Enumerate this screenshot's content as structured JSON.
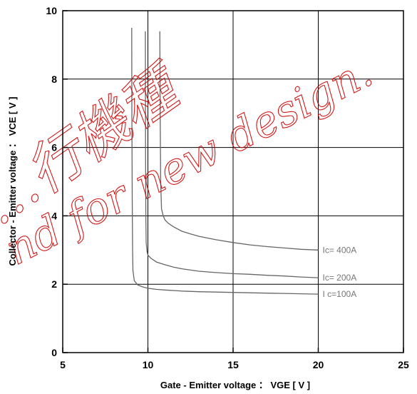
{
  "chart_data": {
    "type": "line",
    "xlabel": "Gate - Emitter voltage ： VGE  [ V ]",
    "ylabel": "Collector - Emitter voltage ： VCE  [ V ]",
    "xlim": [
      5,
      25
    ],
    "ylim": [
      0,
      10
    ],
    "xticks": [
      5,
      10,
      15,
      20,
      25
    ],
    "yticks": [
      0,
      2,
      4,
      6,
      8,
      10
    ],
    "grid": true,
    "series": [
      {
        "name": "Ic= 400A",
        "color": "#666666",
        "x": [
          10.7,
          10.72,
          10.75,
          10.8,
          10.9,
          11.0,
          11.2,
          11.5,
          12.0,
          12.5,
          13.0,
          14.0,
          15.0,
          16.0,
          17.0,
          18.0,
          19.0,
          20.0
        ],
        "y": [
          9.4,
          7.0,
          5.0,
          4.2,
          4.0,
          3.88,
          3.78,
          3.68,
          3.55,
          3.47,
          3.4,
          3.3,
          3.22,
          3.15,
          3.1,
          3.06,
          3.02,
          3.0
        ]
      },
      {
        "name": "Ic= 200A",
        "color": "#666666",
        "x": [
          9.85,
          9.86,
          9.88,
          9.9,
          9.95,
          10.0,
          10.2,
          10.5,
          11.0,
          11.5,
          12.0,
          13.0,
          14.0,
          15.0,
          16.0,
          17.0,
          18.0,
          19.0,
          20.0
        ],
        "y": [
          9.4,
          6.0,
          4.0,
          3.2,
          2.95,
          2.85,
          2.75,
          2.65,
          2.57,
          2.5,
          2.45,
          2.38,
          2.34,
          2.31,
          2.29,
          2.26,
          2.24,
          2.21,
          2.19
        ]
      },
      {
        "name": "I c=100A",
        "color": "#666666",
        "x": [
          9.05,
          9.06,
          9.08,
          9.1,
          9.12,
          9.2,
          9.4,
          9.7,
          10.0,
          10.5,
          11.0,
          12.0,
          13.0,
          14.0,
          15.0,
          16.0,
          17.0,
          18.0,
          19.0,
          20.0
        ],
        "y": [
          9.5,
          7.0,
          4.5,
          3.0,
          2.4,
          2.1,
          1.98,
          1.92,
          1.88,
          1.85,
          1.83,
          1.8,
          1.78,
          1.77,
          1.76,
          1.75,
          1.74,
          1.73,
          1.72,
          1.71
        ]
      }
    ],
    "annotations": [
      "Ic= 400A",
      "Ic= 200A",
      "I c=100A"
    ],
    "watermark": {
      "lines": [
        "…行機種",
        "nd for new design."
      ],
      "color": "#d00000"
    }
  }
}
